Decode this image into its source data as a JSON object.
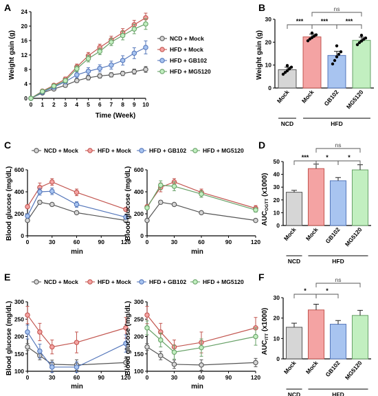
{
  "series_styles": [
    {
      "name": "NCD + Mock",
      "fill": "#d6d6d6",
      "stroke": "#555555"
    },
    {
      "name": "HFD + Mock",
      "fill": "#f4a3a3",
      "stroke": "#c2554f"
    },
    {
      "name": "HFD + GB102",
      "fill": "#a8c4f0",
      "stroke": "#5577bb"
    },
    {
      "name": "HFD + MG5120",
      "fill": "#c2efc0",
      "stroke": "#66a066"
    }
  ],
  "bar_groups": {
    "ncd": "NCD",
    "hfd": "HFD"
  },
  "chart_data": [
    {
      "panel": "A",
      "type": "line",
      "xlabel": "Time (Week)",
      "ylabel": "Weight gain (g)",
      "xlim": [
        0,
        10
      ],
      "ylim": [
        0,
        24
      ],
      "xticks": [
        "0",
        "1",
        "2",
        "3",
        "4",
        "5",
        "6",
        "7",
        "8",
        "9",
        "10"
      ],
      "yticks": [
        "0",
        "4",
        "8",
        "12",
        "16",
        "20",
        "24"
      ],
      "x": [
        0,
        1,
        2,
        3,
        4,
        5,
        6,
        7,
        8,
        9,
        10
      ],
      "legend": [
        "NCD + Mock",
        "HFD + Mock",
        "HFD + GB102",
        "HFD + MG5120"
      ],
      "series": [
        {
          "name": "NCD + Mock",
          "values": [
            0,
            1.5,
            2.6,
            3.6,
            4.9,
            5.7,
            6.2,
            6.5,
            6.9,
            7.4,
            8.0
          ],
          "err": [
            0,
            0.3,
            0.4,
            0.5,
            0.5,
            0.6,
            0.6,
            0.6,
            0.6,
            0.7,
            0.8
          ]
        },
        {
          "name": "HFD + Mock",
          "values": [
            0,
            2.0,
            3.6,
            5.3,
            8.7,
            11.8,
            14.1,
            16.2,
            18.2,
            20.4,
            22.3
          ],
          "err": [
            0,
            0.3,
            0.5,
            0.6,
            0.8,
            0.9,
            0.9,
            1.0,
            1.1,
            1.2,
            1.3
          ]
        },
        {
          "name": "HFD + GB102",
          "values": [
            0,
            1.7,
            3.1,
            4.6,
            6.5,
            7.5,
            8.3,
            9.2,
            10.5,
            12.5,
            14.1
          ],
          "err": [
            0,
            0.3,
            0.5,
            0.6,
            0.8,
            1.0,
            1.0,
            1.1,
            1.3,
            1.5,
            1.8
          ]
        },
        {
          "name": "HFD + MG5120",
          "values": [
            0,
            1.9,
            3.4,
            4.9,
            8.2,
            11.0,
            13.0,
            15.6,
            17.4,
            19.2,
            20.6
          ],
          "err": [
            0,
            0.3,
            0.4,
            0.6,
            0.8,
            0.9,
            0.9,
            1.0,
            1.2,
            1.3,
            1.5
          ]
        }
      ]
    },
    {
      "panel": "B",
      "type": "bar",
      "ylabel": "Weight gain (g)",
      "ylim": [
        0,
        30
      ],
      "yticks": [
        "0",
        "10",
        "20",
        "30"
      ],
      "categories": [
        "Mock",
        "Mock",
        "GB102",
        "MG5120"
      ],
      "values": [
        8.0,
        22.3,
        14.2,
        20.8
      ],
      "err": [
        1.1,
        1.2,
        1.8,
        1.4
      ],
      "points": [
        [
          6.0,
          6.8,
          7.5,
          8.3,
          9.1,
          9.8
        ],
        [
          20.6,
          21.4,
          22.0,
          22.6,
          23.2,
          24.0
        ],
        [
          10.5,
          12.0,
          13.6,
          14.7,
          15.8,
          18.4
        ],
        [
          18.9,
          19.8,
          20.5,
          21.2,
          21.8,
          23.0
        ]
      ],
      "annotations": [
        {
          "from": 0,
          "to": 1,
          "text": "***"
        },
        {
          "from": 1,
          "to": 2,
          "text": "***"
        },
        {
          "from": 2,
          "to": 3,
          "text": "***"
        },
        {
          "from": 1,
          "to": 3,
          "text": "ns"
        }
      ]
    },
    {
      "panel": "C1",
      "type": "line",
      "xlabel": "min",
      "ylabel": "Blood glucose (mg/dL)",
      "xlim": [
        0,
        120
      ],
      "ylim": [
        0,
        600
      ],
      "xticks": [
        "0",
        "30",
        "60",
        "90",
        "120"
      ],
      "yticks": [
        "0",
        "200",
        "400",
        "600"
      ],
      "x": [
        0,
        15,
        30,
        60,
        120
      ],
      "legend": [
        "NCD + Mock",
        "HFD + Mock",
        "HFD + GB102",
        "HFD + MG5120"
      ],
      "series": [
        {
          "name": "NCD + Mock",
          "values": [
            140,
            305,
            285,
            210,
            140
          ],
          "err": [
            8,
            15,
            15,
            10,
            8
          ]
        },
        {
          "name": "HFD + Mock",
          "values": [
            265,
            440,
            490,
            395,
            240
          ],
          "err": [
            15,
            40,
            30,
            30,
            15
          ]
        },
        {
          "name": "HFD + GB102",
          "values": [
            180,
            400,
            405,
            285,
            170
          ],
          "err": [
            15,
            30,
            30,
            25,
            15
          ]
        }
      ]
    },
    {
      "panel": "C2",
      "type": "line",
      "xlabel": "min",
      "ylabel": "Blood glucose (mg/dL)",
      "xlim": [
        0,
        120
      ],
      "ylim": [
        0,
        600
      ],
      "xticks": [
        "0",
        "30",
        "60",
        "90",
        "120"
      ],
      "yticks": [
        "0",
        "200",
        "400",
        "600"
      ],
      "x": [
        0,
        15,
        30,
        60,
        120
      ],
      "series": [
        {
          "name": "NCD + Mock",
          "values": [
            140,
            305,
            285,
            210,
            140
          ],
          "err": [
            8,
            15,
            15,
            10,
            8
          ]
        },
        {
          "name": "HFD + Mock",
          "values": [
            265,
            440,
            490,
            395,
            250
          ],
          "err": [
            15,
            40,
            30,
            30,
            25
          ]
        },
        {
          "name": "HFD + MG5120",
          "values": [
            255,
            460,
            450,
            380,
            235
          ],
          "err": [
            15,
            40,
            40,
            30,
            20
          ]
        }
      ]
    },
    {
      "panel": "D",
      "type": "bar",
      "ylabel": "AUCOGTT (x1000)",
      "ylim": [
        0,
        50
      ],
      "yticks": [
        "0",
        "10",
        "20",
        "30",
        "40",
        "50"
      ],
      "categories": [
        "Mock",
        "Mock",
        "GB102",
        "MG5120"
      ],
      "values": [
        26.0,
        44.5,
        35.0,
        43.5
      ],
      "err": [
        1.5,
        3.5,
        2.5,
        4.0
      ],
      "annotations": [
        {
          "from": 0,
          "to": 1,
          "text": "***"
        },
        {
          "from": 1,
          "to": 2,
          "text": "*"
        },
        {
          "from": 2,
          "to": 3,
          "text": "*"
        },
        {
          "from": 1,
          "to": 3,
          "text": "ns"
        }
      ]
    },
    {
      "panel": "E1",
      "type": "line",
      "xlabel": "min",
      "ylabel": "Blood glucose (mg/dL)",
      "xlim": [
        0,
        120
      ],
      "ylim": [
        100,
        300
      ],
      "xticks": [
        "0",
        "30",
        "60",
        "90",
        "120"
      ],
      "yticks": [
        "100",
        "150",
        "200",
        "250",
        "300"
      ],
      "x": [
        0,
        15,
        30,
        60,
        120
      ],
      "legend": [
        "NCD + Mock",
        "HFD + Mock",
        "HFD + GB102",
        "HFD + MG5120"
      ],
      "series": [
        {
          "name": "NCD + Mock",
          "values": [
            170,
            145,
            120,
            118,
            125
          ],
          "err": [
            10,
            12,
            12,
            15,
            12
          ]
        },
        {
          "name": "HFD + Mock",
          "values": [
            262,
            213,
            170,
            183,
            225
          ],
          "err": [
            25,
            25,
            20,
            30,
            30
          ]
        },
        {
          "name": "HFD + GB102",
          "values": [
            213,
            158,
            112,
            112,
            180
          ],
          "err": [
            20,
            20,
            15,
            15,
            25
          ]
        }
      ]
    },
    {
      "panel": "E2",
      "type": "line",
      "xlabel": "min",
      "ylabel": "Blood glucose (mg/dL)",
      "xlim": [
        0,
        120
      ],
      "ylim": [
        100,
        300
      ],
      "xticks": [
        "0",
        "30",
        "60",
        "90",
        "120"
      ],
      "yticks": [
        "100",
        "150",
        "200",
        "250",
        "300"
      ],
      "x": [
        0,
        15,
        30,
        60,
        120
      ],
      "series": [
        {
          "name": "NCD + Mock",
          "values": [
            170,
            145,
            120,
            118,
            125
          ],
          "err": [
            10,
            12,
            12,
            15,
            12
          ]
        },
        {
          "name": "HFD + Mock",
          "values": [
            262,
            213,
            170,
            183,
            225
          ],
          "err": [
            25,
            25,
            20,
            30,
            30
          ]
        },
        {
          "name": "HFD + MG5120",
          "values": [
            225,
            190,
            155,
            168,
            200
          ],
          "err": [
            20,
            20,
            20,
            25,
            25
          ]
        }
      ]
    },
    {
      "panel": "F",
      "type": "bar",
      "ylabel": "AUCITT (x1000)",
      "ylim": [
        0,
        30
      ],
      "yticks": [
        "0",
        "10",
        "20",
        "30"
      ],
      "categories": [
        "Mock",
        "Mock",
        "GB102",
        "MG5120"
      ],
      "values": [
        15.5,
        24.0,
        17.0,
        21.3
      ],
      "err": [
        2.0,
        2.8,
        1.8,
        2.5
      ],
      "annotations": [
        {
          "from": 0,
          "to": 1,
          "text": "*"
        },
        {
          "from": 1,
          "to": 2,
          "text": "*"
        },
        {
          "from": 1,
          "to": 3,
          "text": "ns"
        }
      ]
    }
  ]
}
